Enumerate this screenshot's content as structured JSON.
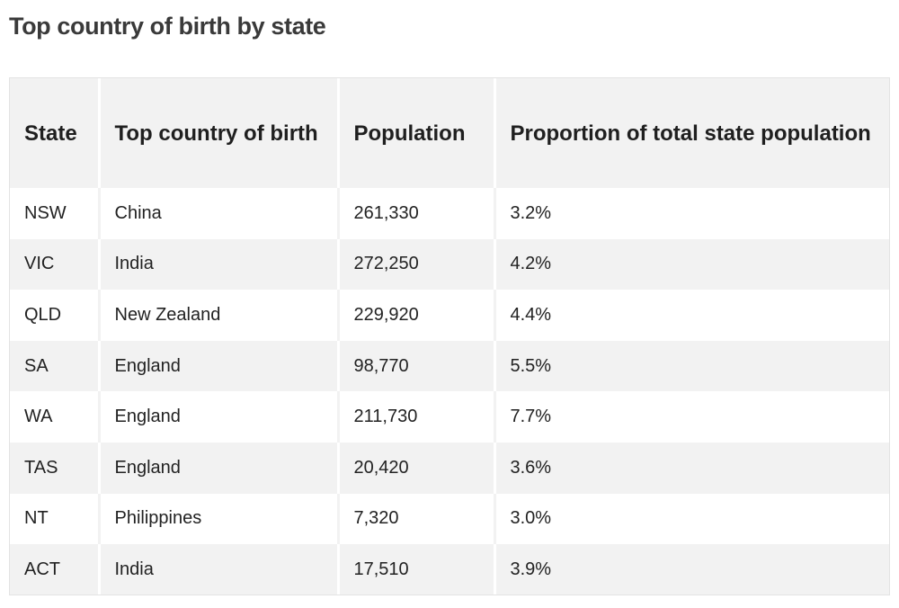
{
  "page": {
    "title": "Top country of birth by state"
  },
  "table": {
    "headers": [
      "State",
      "Top country of birth",
      "Population",
      "Proportion of total state population"
    ],
    "rows": [
      [
        "NSW",
        "China",
        "261,330",
        "3.2%"
      ],
      [
        "VIC",
        "India",
        "272,250",
        "4.2%"
      ],
      [
        "QLD",
        "New Zealand",
        "229,920",
        "4.4%"
      ],
      [
        "SA",
        "England",
        "98,770",
        "5.5%"
      ],
      [
        "WA",
        "England",
        "211,730",
        "7.7%"
      ],
      [
        "TAS",
        "England",
        "20,420",
        "3.6%"
      ],
      [
        "NT",
        "Philippines",
        "7,320",
        "3.0%"
      ],
      [
        "ACT",
        "India",
        "17,510",
        "3.9%"
      ]
    ]
  }
}
